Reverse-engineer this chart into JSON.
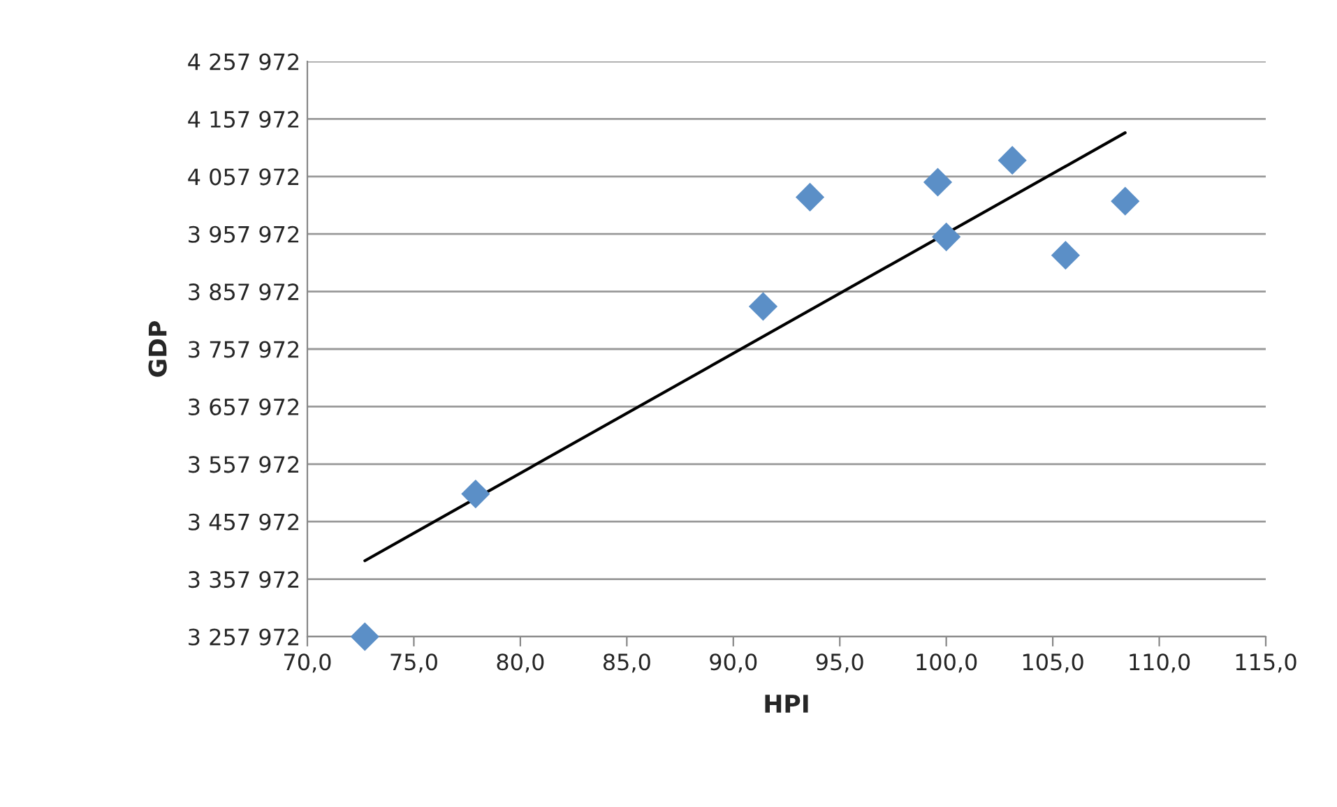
{
  "chart_data": {
    "type": "scatter",
    "xlabel": "HPI",
    "ylabel": "GDP",
    "series": [
      {
        "color": "#5b8fc7",
        "marker": "diamond",
        "x": [
          72.7,
          77.9,
          91.4,
          93.6,
          99.6,
          100.0,
          103.1,
          105.6,
          108.4
        ],
        "values": [
          3258000,
          3506000,
          3832000,
          4022000,
          4048000,
          3953000,
          4086000,
          3921000,
          4015000
        ]
      },
      {
        "type": "line",
        "color": "#000000",
        "marker": "none",
        "x": [
          72.7,
          108.4
        ],
        "values": [
          3390000,
          4134000
        ]
      }
    ],
    "xlim": [
      70,
      115
    ],
    "ylim": [
      3257972,
      4257972
    ],
    "xticks": [
      {
        "value": 70,
        "label": "70,0"
      },
      {
        "value": 75,
        "label": "75,0"
      },
      {
        "value": 80,
        "label": "80,0"
      },
      {
        "value": 85,
        "label": "85,0"
      },
      {
        "value": 90,
        "label": "90,0"
      },
      {
        "value": 95,
        "label": "95,0"
      },
      {
        "value": 100,
        "label": "100,0"
      },
      {
        "value": 105,
        "label": "105,0"
      },
      {
        "value": 110,
        "label": "110,0"
      },
      {
        "value": 115,
        "label": "115,0"
      }
    ],
    "yticks": [
      {
        "value": 3257972,
        "label": "3 257 972"
      },
      {
        "value": 3357972,
        "label": "3 357 972"
      },
      {
        "value": 3457972,
        "label": "3 457 972"
      },
      {
        "value": 3557972,
        "label": "3 557 972"
      },
      {
        "value": 3657972,
        "label": "3 657 972"
      },
      {
        "value": 3757972,
        "label": "3 757 972"
      },
      {
        "value": 3857972,
        "label": "3 857 972"
      },
      {
        "value": 3957972,
        "label": "3 957 972"
      },
      {
        "value": 4057972,
        "label": "4 057 972"
      },
      {
        "value": 4157972,
        "label": "4 157 972"
      },
      {
        "value": 4257972,
        "label": "4 257 972"
      }
    ],
    "grid": "y",
    "legend": false
  }
}
